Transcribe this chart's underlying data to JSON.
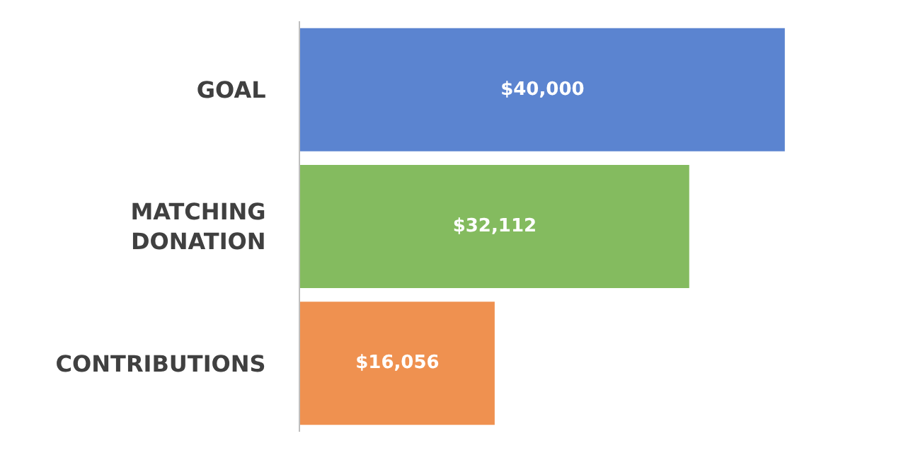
{
  "chart_data": {
    "type": "bar",
    "orientation": "horizontal",
    "categories": [
      "GOAL",
      "MATCHING DONATION",
      "CONTRIBUTIONS"
    ],
    "values": [
      40000,
      32112,
      16056
    ],
    "colors": [
      "#5b84d0",
      "#84bb5f",
      "#ef9150"
    ],
    "value_labels": [
      "$40,000",
      "$32,112",
      "$16,056"
    ]
  }
}
